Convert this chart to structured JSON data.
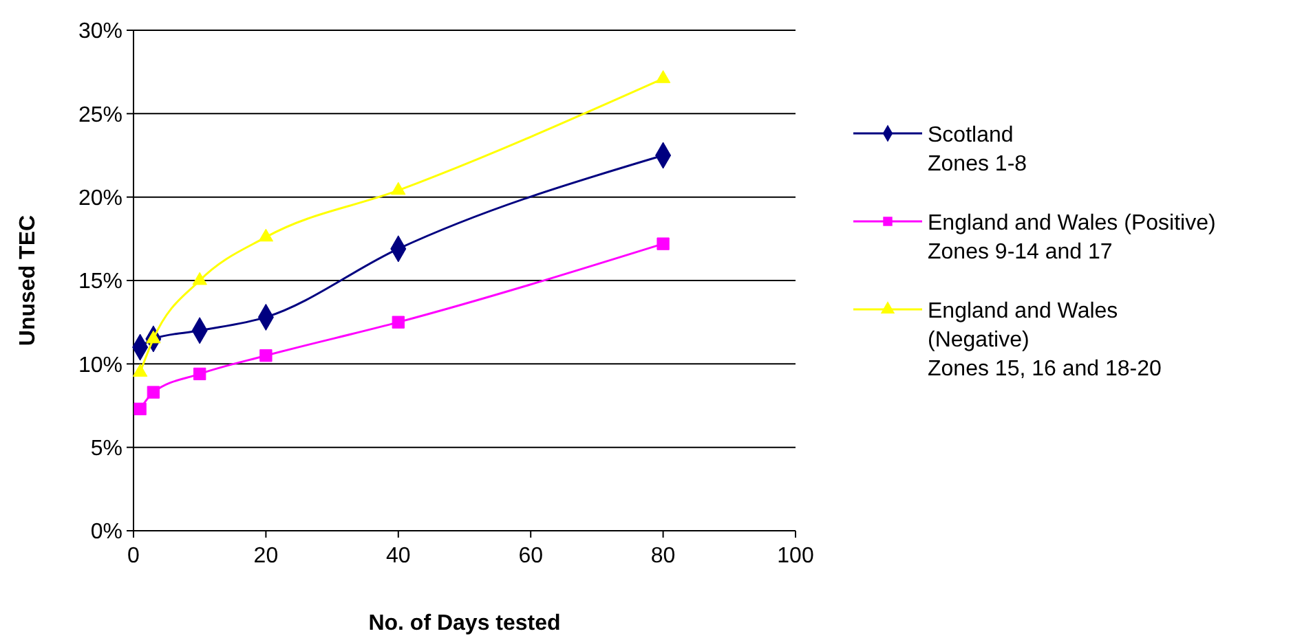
{
  "chart_data": {
    "type": "line",
    "xlabel": "No. of Days tested",
    "ylabel": "Unused TEC",
    "x": [
      1,
      3,
      10,
      20,
      40,
      80
    ],
    "xlim": [
      0,
      100
    ],
    "xticks": [
      0,
      20,
      40,
      60,
      80,
      100
    ],
    "ylim": [
      0,
      0.3
    ],
    "yticks": [
      {
        "value": 0,
        "label": "0%"
      },
      {
        "value": 0.05,
        "label": "5%"
      },
      {
        "value": 0.1,
        "label": "10%"
      },
      {
        "value": 0.15,
        "label": "15%"
      },
      {
        "value": 0.2,
        "label": "20%"
      },
      {
        "value": 0.25,
        "label": "25%"
      },
      {
        "value": 0.3,
        "label": "30%"
      }
    ],
    "grid": "y",
    "legend": "right",
    "series": [
      {
        "name": "Scotland\nZones 1-8",
        "color": "#000080",
        "marker": "diamond",
        "values": [
          0.11,
          0.115,
          0.12,
          0.128,
          0.169,
          0.225
        ]
      },
      {
        "name": "England and Wales (Positive)\nZones 9-14 and 17",
        "color": "#ff00ff",
        "marker": "square",
        "values": [
          0.073,
          0.083,
          0.094,
          0.105,
          0.125,
          0.172
        ]
      },
      {
        "name": "England and Wales\n(Negative)\nZones 15, 16 and 18-20",
        "color": "#ffff00",
        "marker": "triangle",
        "values": [
          0.095,
          0.115,
          0.15,
          0.176,
          0.204,
          0.271
        ]
      }
    ]
  }
}
